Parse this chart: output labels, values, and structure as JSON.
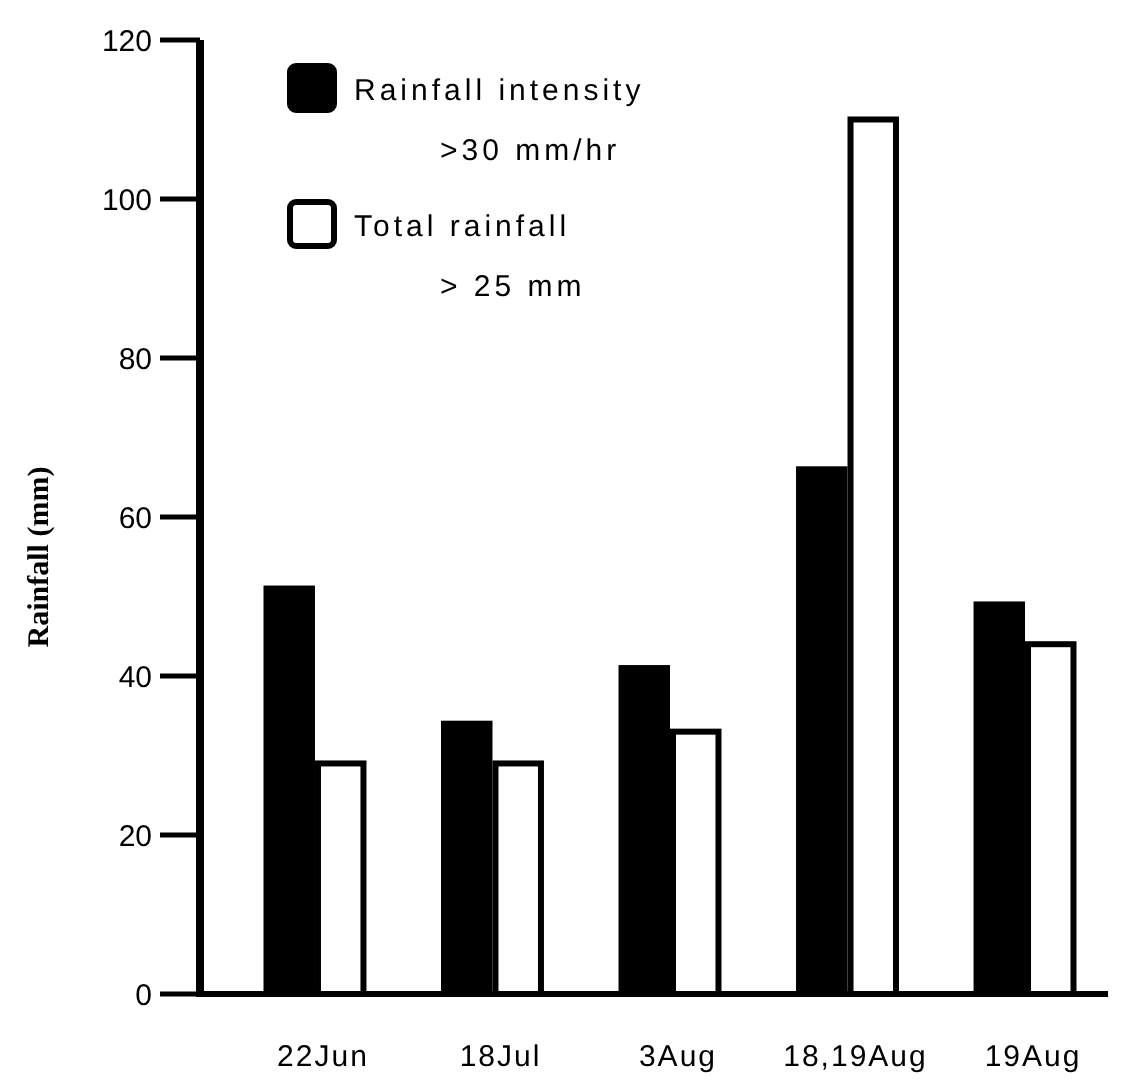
{
  "chart_data": {
    "type": "bar",
    "ylabel": "Rainfall (mm)",
    "categories": [
      "22Jun",
      "18Jul",
      "3Aug",
      "18,19Aug",
      "19Aug"
    ],
    "ylim": [
      0,
      120
    ],
    "yticks": [
      0,
      20,
      40,
      60,
      80,
      100,
      120
    ],
    "legend": "top left",
    "series": [
      {
        "name": "Rainfall intensity\n>30 mm/hr",
        "color": "#000000",
        "values": [
          51,
          34,
          41,
          66,
          49
        ]
      },
      {
        "name": "Total rainfall\n> 25 mm",
        "color": "#ffffff",
        "values": [
          29,
          29,
          33,
          110,
          44
        ]
      }
    ]
  }
}
